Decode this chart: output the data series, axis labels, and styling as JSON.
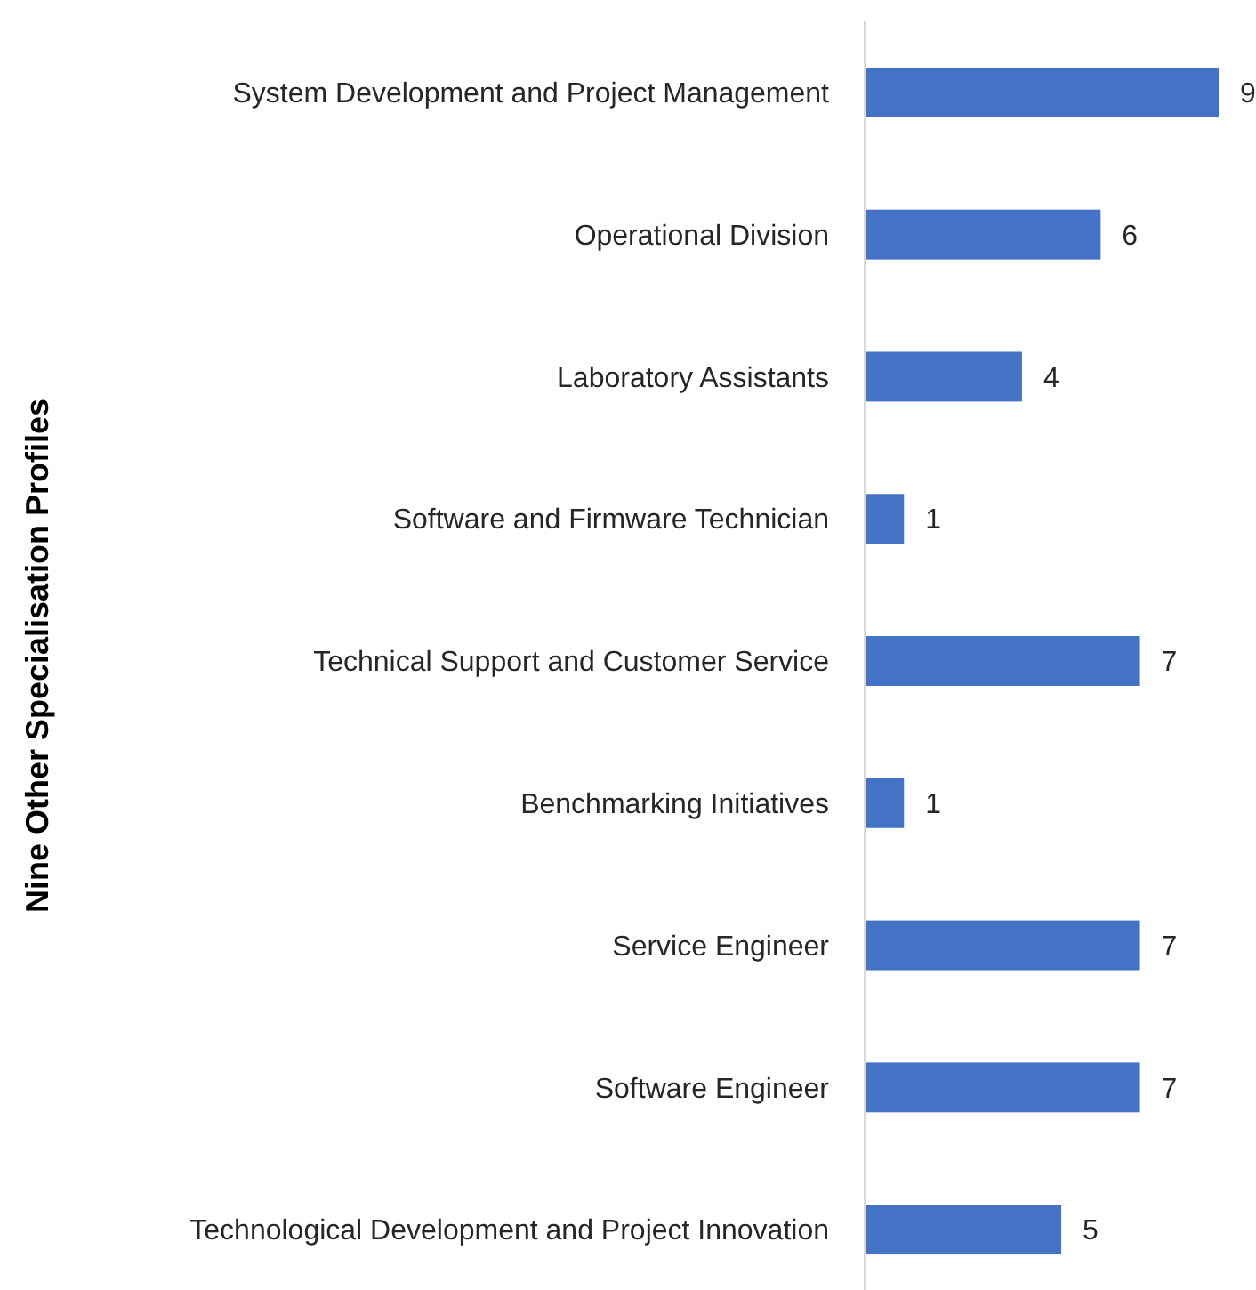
{
  "chart_data": {
    "type": "bar",
    "orientation": "horizontal",
    "ylabel": "Nine Other Specialisation Profiles",
    "categories": [
      "System Development and Project Management",
      "Operational Division",
      "Laboratory Assistants",
      "Software and Firmware Technician",
      "Technical Support and Customer Service",
      "Benchmarking Initiatives",
      "Service Engineer",
      "Software Engineer",
      "Technological Development and Project Innovation"
    ],
    "values": [
      9,
      6,
      4,
      1,
      7,
      1,
      7,
      7,
      5
    ],
    "color": "#4472c4",
    "data_labels": true
  }
}
